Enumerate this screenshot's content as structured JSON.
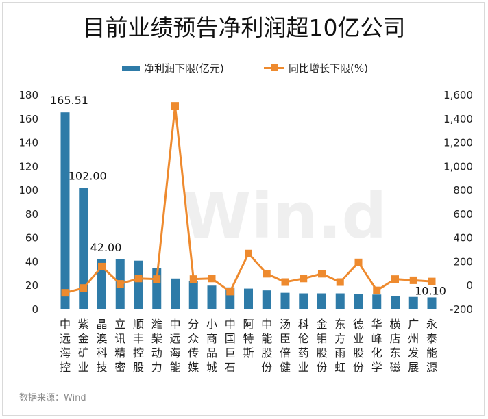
{
  "chart_data": {
    "type": "bar",
    "title": "目前业绩预告净利润超10亿公司",
    "categories": [
      "中远海控",
      "紫金矿业",
      "晶澳科技",
      "立讯精密",
      "顺丰控股",
      "潍柴动力",
      "中远海能",
      "分众传媒",
      "小商品城",
      "中国巨石",
      "阿特斯",
      "中能股份",
      "汤臣倍健",
      "科伦药业",
      "金钼股份",
      "东方雨虹",
      "德业股份",
      "华峰化学",
      "横店东磁",
      "广州发展",
      "永泰能源"
    ],
    "series": [
      {
        "name": "净利润下限(亿元)",
        "type": "bar",
        "axis": "left",
        "color": "#2e7ba8",
        "values": [
          165.51,
          102.0,
          42.0,
          42.0,
          41.0,
          35.0,
          26.0,
          24.0,
          20.0,
          18.5,
          17.5,
          16.0,
          14.0,
          13.5,
          13.5,
          13.5,
          13.0,
          12.5,
          11.5,
          10.5,
          10.1
        ]
      },
      {
        "name": "同比增长下限(%)",
        "type": "line",
        "axis": "right",
        "color": "#ee8a2e",
        "values": [
          -60,
          -20,
          160,
          15,
          60,
          55,
          1510,
          55,
          60,
          -50,
          270,
          100,
          30,
          60,
          100,
          30,
          195,
          -40,
          55,
          45,
          35
        ]
      }
    ],
    "data_labels": [
      {
        "index": 0,
        "text": "165.51"
      },
      {
        "index": 1,
        "text": "102.00"
      },
      {
        "index": 2,
        "text": "42.00"
      },
      {
        "index": 20,
        "text": "10.10"
      }
    ],
    "ylim_left": [
      0,
      180
    ],
    "yticks_left": [
      0,
      20,
      40,
      60,
      80,
      100,
      120,
      140,
      160,
      180
    ],
    "ylim_right": [
      -200,
      1600
    ],
    "yticks_right": [
      "-200",
      "0",
      "200",
      "400",
      "600",
      "800",
      "1,000",
      "1,200",
      "1,400",
      "1,600"
    ],
    "grid": false,
    "legend_position": "top"
  },
  "source_text": "数据来源：Wind",
  "watermark_text": "Win.d"
}
